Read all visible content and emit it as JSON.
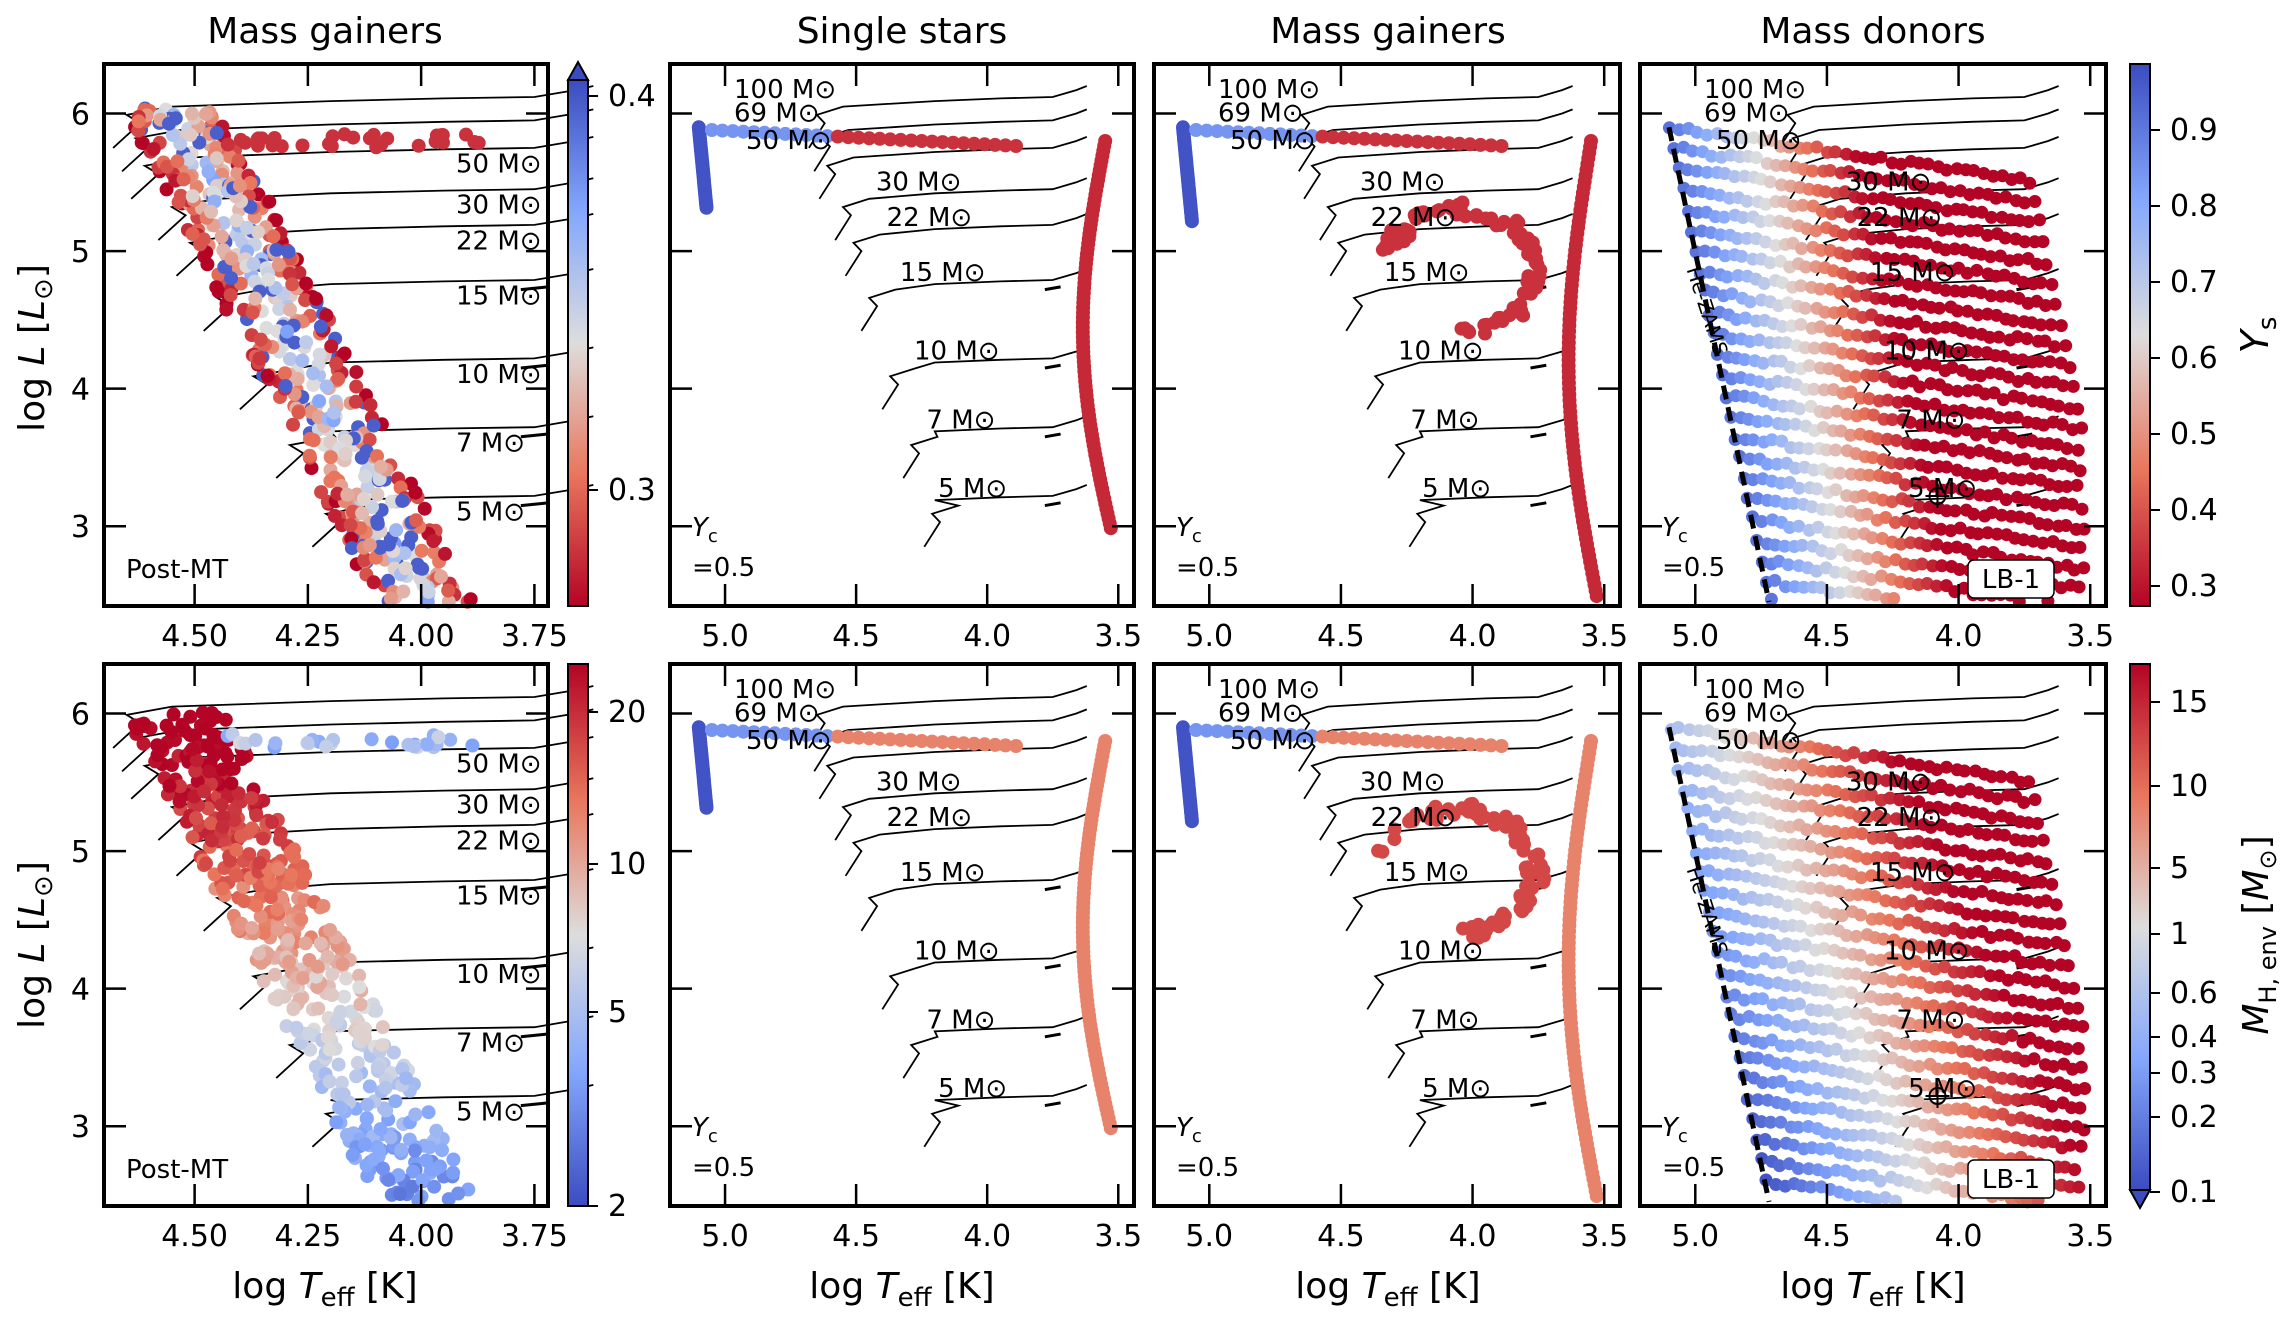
{
  "figure": {
    "column_titles": [
      "Mass gainers",
      "Single stars",
      "Mass gainers",
      "Mass donors"
    ],
    "ylabel": "log L [L⊙]",
    "xlabel": "log T_eff [K]",
    "track_mass_labels": [
      "100 M⊙",
      "69 M⊙",
      "50 M⊙",
      "30 M⊙",
      "22 M⊙",
      "15 M⊙",
      "10 M⊙",
      "7 M⊙",
      "5 M⊙"
    ],
    "annotations": {
      "post_mt": "Post-MT",
      "yc_line1": "Y",
      "yc_sub": "c",
      "yc_line2": "=0.5",
      "he_zams": "He-ZAMS",
      "lb1": "LB-1"
    },
    "colorbars": {
      "ys_small": {
        "ticks": [
          "0.4",
          "0.3"
        ]
      },
      "ys_main": {
        "label": "Y_s",
        "ticks": [
          "0.9",
          "0.8",
          "0.7",
          "0.6",
          "0.5",
          "0.4",
          "0.3"
        ]
      },
      "mh_small": {
        "ticks": [
          "20",
          "10",
          "5",
          "2"
        ]
      },
      "mh_main": {
        "label": "M_H,env [M⊙]",
        "ticks": [
          "15",
          "10",
          "5",
          "1",
          "0.6",
          "0.4",
          "0.3",
          "0.2",
          "0.1"
        ]
      }
    },
    "colors": {
      "blue": "#3b4cc0",
      "neutral": "#dddddd",
      "red": "#b40426"
    }
  },
  "chart_data": [
    {
      "type": "scatter",
      "panel": "top-1",
      "title": "Mass gainers",
      "xlabel": "",
      "ylabel": "log L [L⊙]",
      "color_by": "Y_s",
      "xlim": [
        4.7,
        3.72
      ],
      "ylim": [
        2.42,
        6.36
      ],
      "xticks": [
        "4.50",
        "4.25",
        "4.00",
        "3.75"
      ],
      "yticks": [
        "6",
        "5",
        "4",
        "3"
      ],
      "tracks": [
        "50 M⊙",
        "30 M⊙",
        "22 M⊙",
        "15 M⊙",
        "10 M⊙",
        "7 M⊙",
        "5 M⊙"
      ],
      "main_sequence_band": {
        "hot_edge": [
          [
            4.66,
            6.0
          ],
          [
            4.3,
            4.0
          ],
          [
            4.1,
            2.45
          ]
        ],
        "cool_edge": [
          [
            4.4,
            6.0
          ],
          [
            4.1,
            3.2
          ],
          [
            4.0,
            2.45
          ]
        ]
      },
      "annotation": "Post-MT"
    },
    {
      "type": "scatter",
      "panel": "top-2",
      "title": "Single stars",
      "color_by": "Y_s",
      "xlim": [
        5.21,
        3.44
      ],
      "ylim": [
        2.42,
        6.36
      ],
      "xticks": [
        "5.0",
        "4.5",
        "4.0",
        "3.5"
      ],
      "tracks": [
        "100 M⊙",
        "69 M⊙",
        "50 M⊙",
        "30 M⊙",
        "22 M⊙",
        "15 M⊙",
        "10 M⊙",
        "7 M⊙",
        "5 M⊙"
      ],
      "annotation": "Y_c =0.5"
    },
    {
      "type": "scatter",
      "panel": "top-3",
      "title": "Mass gainers",
      "color_by": "Y_s",
      "xlim": [
        5.21,
        3.44
      ],
      "ylim": [
        2.42,
        6.36
      ],
      "xticks": [
        "5.0",
        "4.5",
        "4.0",
        "3.5"
      ],
      "annotation": "Y_c =0.5"
    },
    {
      "type": "scatter",
      "panel": "top-4",
      "title": "Mass donors",
      "color_by": "Y_s",
      "xlim": [
        5.21,
        3.44
      ],
      "ylim": [
        2.42,
        6.36
      ],
      "xticks": [
        "5.0",
        "4.5",
        "4.0",
        "3.5"
      ],
      "he_zams_line": [
        [
          5.1,
          5.9
        ],
        [
          4.72,
          2.45
        ]
      ],
      "lb1_point": {
        "logTeff": 4.08,
        "logL": 3.2
      },
      "annotations": [
        "Y_c =0.5",
        "He-ZAMS",
        "LB-1"
      ]
    },
    {
      "type": "scatter",
      "panel": "bottom-1",
      "xlabel": "log T_eff [K]",
      "ylabel": "log L [L⊙]",
      "color_by": "M_H,env",
      "xlim": [
        4.7,
        3.72
      ],
      "ylim": [
        2.42,
        6.36
      ],
      "xticks": [
        "4.50",
        "4.25",
        "4.00",
        "3.75"
      ],
      "annotation": "Post-MT"
    },
    {
      "type": "scatter",
      "panel": "bottom-2",
      "xlabel": "log T_eff [K]",
      "color_by": "M_H,env",
      "xlim": [
        5.21,
        3.44
      ],
      "ylim": [
        2.42,
        6.36
      ],
      "annotation": "Y_c =0.5"
    },
    {
      "type": "scatter",
      "panel": "bottom-3",
      "xlabel": "log T_eff [K]",
      "color_by": "M_H,env",
      "xlim": [
        5.21,
        3.44
      ],
      "ylim": [
        2.42,
        6.36
      ],
      "annotation": "Y_c =0.5"
    },
    {
      "type": "scatter",
      "panel": "bottom-4",
      "xlabel": "log T_eff [K]",
      "color_by": "M_H,env",
      "xlim": [
        5.21,
        3.44
      ],
      "ylim": [
        2.42,
        6.36
      ],
      "annotations": [
        "Y_c =0.5",
        "He-ZAMS",
        "LB-1"
      ]
    }
  ]
}
